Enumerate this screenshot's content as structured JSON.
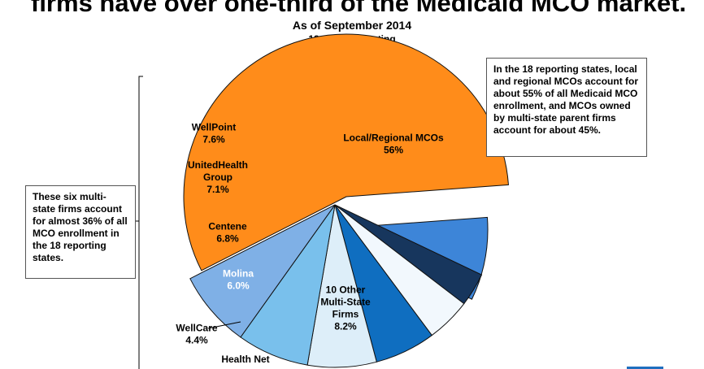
{
  "headline": "firms have over one-third of the Medicaid MCO market.",
  "subtitle": "As of September 2014",
  "subtitle2": "18 states reporting",
  "note_right": "In the 18 reporting states, local and regional MCOs account for about 55% of all Medicaid MCO enrollment, and MCOs owned by multi-state parent firms account for about 45%.",
  "note_left": "These six multi-state firms account for almost 36% of all MCO enrollment in the 18 reporting states.",
  "chart_data": {
    "type": "pie",
    "title": "As of September 2014",
    "subtitle": "18 states reporting",
    "slices": [
      {
        "label": "Local/Regional MCOs",
        "value": 56,
        "value_label": "56%",
        "color": "#ff8c1a",
        "exploded": true
      },
      {
        "label": "10 Other Multi-State Firms",
        "value": 8.2,
        "value_label": "8.2%",
        "color": "#3d85d8",
        "exploded": true
      },
      {
        "label": "Health Net",
        "value": 3.3,
        "value_label": "",
        "color": "#17365d",
        "exploded": false
      },
      {
        "label": "WellCare",
        "value": 4.4,
        "value_label": "4.4%",
        "color": "#f2f8fd",
        "exploded": false
      },
      {
        "label": "Molina",
        "value": 6.0,
        "value_label": "6.0%",
        "color": "#0f6ec0",
        "exploded": false
      },
      {
        "label": "Centene",
        "value": 6.8,
        "value_label": "6.8%",
        "color": "#ddeef9",
        "exploded": false
      },
      {
        "label": "UnitedHealth Group",
        "value": 7.1,
        "value_label": "7.1%",
        "color": "#79c0ec",
        "exploded": false
      },
      {
        "label": "WellPoint",
        "value": 7.6,
        "value_label": "7.6%",
        "color": "#7fb0e6",
        "exploded": false
      }
    ]
  }
}
